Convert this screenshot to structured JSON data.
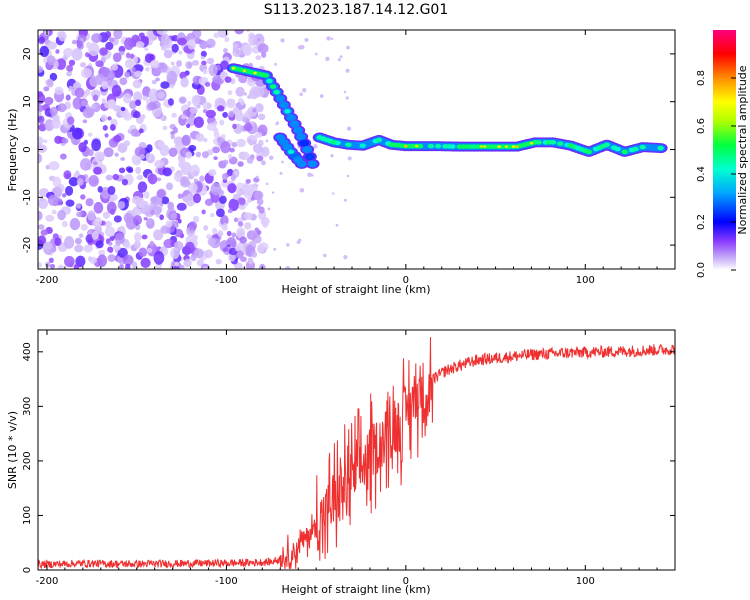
{
  "title": "S113.2023.187.14.12.G01",
  "chart_data": [
    {
      "type": "heatmap",
      "name": "spectrogram",
      "xlabel": "Height of straight line (km)",
      "ylabel": "Frequency (Hz)",
      "xlim": [
        -205,
        150
      ],
      "ylim": [
        -25,
        25
      ],
      "xticks": [
        -200,
        -100,
        0,
        100
      ],
      "yticks": [
        -20,
        -10,
        0,
        10,
        20
      ],
      "colorbar": {
        "label": "Normalized spectral amplitude",
        "range": [
          0,
          1
        ],
        "ticks": [
          0.0,
          0.2,
          0.4,
          0.6,
          0.8
        ],
        "colormap": [
          "#ffffff",
          "#a07cf0",
          "#6a00ff",
          "#0000ff",
          "#00ccff",
          "#00ff66",
          "#ffff00",
          "#ff8800",
          "#ff0000",
          "#ff0080"
        ]
      },
      "ridge": [
        {
          "x": -96,
          "y": 17,
          "a": 0.7
        },
        {
          "x": -90,
          "y": 16.5,
          "a": 0.65
        },
        {
          "x": -84,
          "y": 16,
          "a": 0.7
        },
        {
          "x": -78,
          "y": 15.5,
          "a": 0.6
        },
        {
          "x": -72,
          "y": 12,
          "a": 0.45
        },
        {
          "x": -66,
          "y": 8,
          "a": 0.4
        },
        {
          "x": -60,
          "y": 4,
          "a": 0.35
        },
        {
          "x": -55,
          "y": 0,
          "a": 0.3
        },
        {
          "x": -52,
          "y": -3,
          "a": 0.3
        },
        {
          "x": -70,
          "y": 2.5,
          "a": 0.35
        },
        {
          "x": -64,
          "y": -0.5,
          "a": 0.4
        },
        {
          "x": -58,
          "y": -3,
          "a": 0.35
        },
        {
          "x": -48,
          "y": 2.5,
          "a": 0.45
        },
        {
          "x": -40,
          "y": 1.5,
          "a": 0.5
        },
        {
          "x": -32,
          "y": 1.0,
          "a": 0.45
        },
        {
          "x": -24,
          "y": 0.8,
          "a": 0.4
        },
        {
          "x": -15,
          "y": 2.0,
          "a": 0.45
        },
        {
          "x": -8,
          "y": 1.0,
          "a": 0.5
        },
        {
          "x": 0,
          "y": 0.7,
          "a": 0.8
        },
        {
          "x": 8,
          "y": 0.7,
          "a": 0.55
        },
        {
          "x": 18,
          "y": 0.7,
          "a": 0.45
        },
        {
          "x": 30,
          "y": 0.6,
          "a": 0.55
        },
        {
          "x": 42,
          "y": 0.6,
          "a": 0.65
        },
        {
          "x": 52,
          "y": 0.6,
          "a": 0.7
        },
        {
          "x": 62,
          "y": 0.6,
          "a": 0.85
        },
        {
          "x": 72,
          "y": 1.5,
          "a": 0.55
        },
        {
          "x": 82,
          "y": 1.5,
          "a": 0.45
        },
        {
          "x": 92,
          "y": 0.8,
          "a": 0.5
        },
        {
          "x": 102,
          "y": -0.5,
          "a": 0.55
        },
        {
          "x": 112,
          "y": 1.0,
          "a": 0.45
        },
        {
          "x": 122,
          "y": -0.5,
          "a": 0.5
        },
        {
          "x": 132,
          "y": 0.5,
          "a": 0.45
        },
        {
          "x": 142,
          "y": 0.3,
          "a": 0.45
        }
      ]
    },
    {
      "type": "line",
      "name": "snr",
      "xlabel": "Height of straight line (km)",
      "ylabel": "SNR (10 * v/v)",
      "xlim": [
        -205,
        150
      ],
      "ylim": [
        0,
        440
      ],
      "xticks": [
        -200,
        -100,
        0,
        100
      ],
      "yticks": [
        0,
        100,
        200,
        300,
        400
      ],
      "color": "#ee3030",
      "x": [
        -205,
        -180,
        -150,
        -120,
        -90,
        -75,
        -65,
        -58,
        -50,
        -42,
        -35,
        -25,
        -18,
        -10,
        -3,
        2,
        8,
        15,
        22,
        30,
        40,
        55,
        70,
        90,
        110,
        130,
        150
      ],
      "y": [
        10,
        12,
        11,
        12,
        13,
        15,
        25,
        50,
        80,
        120,
        150,
        190,
        220,
        250,
        270,
        300,
        330,
        350,
        365,
        375,
        385,
        390,
        395,
        398,
        400,
        402,
        405
      ]
    }
  ]
}
